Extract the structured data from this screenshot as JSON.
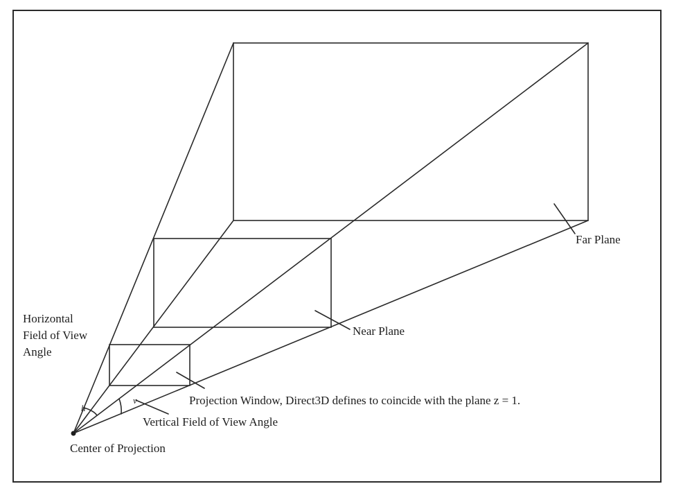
{
  "labels": {
    "far_plane": "Far Plane",
    "near_plane": "Near Plane",
    "horizontal_fov_line1": "Horizontal",
    "horizontal_fov_line2": "Field of View",
    "horizontal_fov_line3": "Angle",
    "projection_window": "Projection Window, Direct3D defines to coincide with the plane z = 1.",
    "vertical_fov": "Vertical Field of View Angle",
    "center_of_projection": "Center of Projection",
    "h_symbol": "h",
    "v_symbol": "v"
  }
}
